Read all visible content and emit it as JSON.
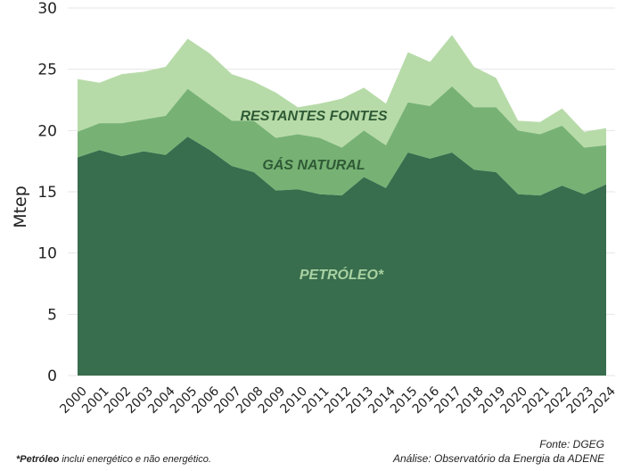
{
  "chart_data": {
    "type": "area",
    "stacked": true,
    "title": "",
    "xlabel": "",
    "ylabel": "Mtep",
    "ylim": [
      0,
      30
    ],
    "yticks": [
      0,
      5,
      10,
      15,
      20,
      25,
      30
    ],
    "grid": true,
    "legend": "inline labels",
    "categories": [
      "2000",
      "2001",
      "2002",
      "2003",
      "2004",
      "2005",
      "2006",
      "2007",
      "2008",
      "2009",
      "2010",
      "2011",
      "2012",
      "2013",
      "2014",
      "2015",
      "2016",
      "2017",
      "2018",
      "2019",
      "2020",
      "2021",
      "2022",
      "2023",
      "2024"
    ],
    "series": [
      {
        "name": "PETRÓLEO*",
        "color": "#386d4d",
        "label_color": "#a9d2a2",
        "values": [
          17.8,
          18.4,
          17.9,
          18.3,
          18.0,
          19.5,
          18.4,
          17.1,
          16.6,
          15.1,
          15.2,
          14.8,
          14.7,
          16.2,
          15.3,
          18.2,
          17.7,
          18.2,
          16.8,
          16.6,
          14.8,
          14.7,
          15.5,
          14.8,
          15.6
        ]
      },
      {
        "name": "GÁS NATURAL",
        "color": "#77b274",
        "label_color": "#2f5a36",
        "values": [
          2.1,
          2.2,
          2.7,
          2.6,
          3.2,
          3.9,
          3.7,
          3.7,
          4.2,
          4.3,
          4.5,
          4.6,
          3.9,
          3.8,
          3.5,
          4.1,
          4.3,
          5.4,
          5.1,
          5.3,
          5.2,
          5.0,
          4.9,
          3.8,
          3.2
        ]
      },
      {
        "name": "RESTANTES FONTES",
        "color": "#b7dba8",
        "label_color": "#2f5a36",
        "values": [
          4.3,
          3.3,
          4.0,
          3.9,
          4.0,
          4.1,
          4.2,
          3.8,
          3.2,
          3.7,
          2.2,
          2.8,
          4.0,
          3.5,
          3.4,
          4.1,
          3.6,
          4.2,
          3.3,
          2.4,
          0.8,
          1.0,
          1.4,
          1.3,
          1.4
        ]
      }
    ],
    "totals": [
      24.2,
      23.9,
      24.6,
      24.8,
      25.2,
      27.5,
      26.3,
      24.6,
      24.0,
      23.1,
      21.9,
      22.2,
      22.6,
      23.5,
      22.2,
      26.4,
      25.6,
      27.8,
      25.2,
      24.3,
      20.8,
      20.7,
      21.8,
      19.9,
      20.2
    ]
  },
  "labels": {
    "restantes": "RESTANTES FONTES",
    "gas": "GÁS NATURAL",
    "petroleo": "PETRÓLEO*"
  },
  "footer": {
    "footnote_bold": "*Petróleo",
    "footnote_rest": " inclui energético e não energético.",
    "source_line1": "Fonte: DGEG",
    "source_line2": "Análise: Observatório da Energia da ADENE"
  }
}
